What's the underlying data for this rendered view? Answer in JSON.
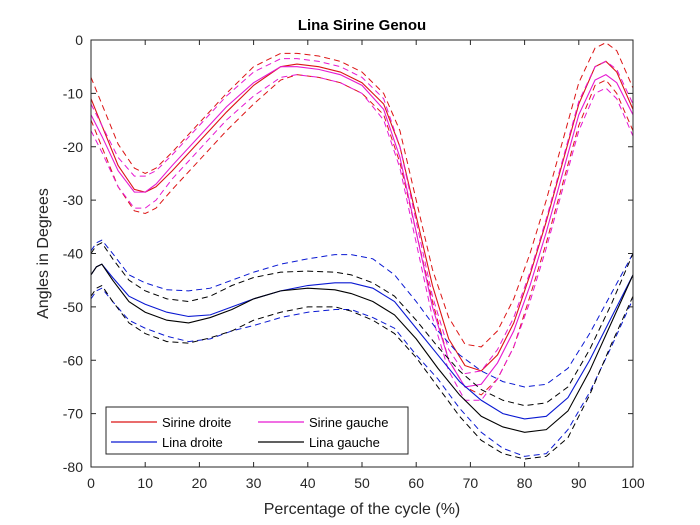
{
  "chart_data": {
    "type": "line",
    "title": "Lina Sirine Genou",
    "xlabel": "Percentage of the cycle (%)",
    "ylabel": "Angles in Degrees",
    "xlim": [
      0,
      100
    ],
    "ylim": [
      -80,
      0
    ],
    "xticks": [
      0,
      10,
      20,
      30,
      40,
      50,
      60,
      70,
      80,
      90,
      100
    ],
    "yticks": [
      0,
      -10,
      -20,
      -30,
      -40,
      -50,
      -60,
      -70,
      -80
    ],
    "legend_position": "bottom-left",
    "series": [
      {
        "name": "Sirine droite",
        "color": "#dc1414",
        "x": [
          0,
          2,
          5,
          8,
          10,
          12,
          15,
          20,
          25,
          30,
          35,
          38,
          42,
          46,
          50,
          54,
          57,
          60,
          63,
          66,
          69,
          72,
          75,
          78,
          81,
          84,
          87,
          90,
          93,
          95,
          97,
          100
        ],
        "mean": [
          -11,
          -16,
          -23.5,
          -28,
          -28.5,
          -27.5,
          -24.5,
          -19,
          -13.5,
          -8.5,
          -5,
          -4.5,
          -5,
          -6,
          -8,
          -12,
          -20,
          -33,
          -46,
          -56,
          -61,
          -62,
          -59,
          -53,
          -44,
          -34,
          -23,
          -12,
          -5,
          -4,
          -6,
          -13
        ],
        "upper": [
          -7,
          -12,
          -19.5,
          -24,
          -25,
          -24,
          -21,
          -15.5,
          -10,
          -5,
          -2.5,
          -2.5,
          -3,
          -4,
          -6,
          -10,
          -17,
          -30,
          -43,
          -52,
          -57,
          -57.5,
          -54.5,
          -48.5,
          -40,
          -30,
          -19,
          -8,
          -1.5,
          -0.5,
          -2,
          -9
        ],
        "lower": [
          -15,
          -20,
          -27.5,
          -32,
          -32.5,
          -31.5,
          -28,
          -22.5,
          -17,
          -12,
          -7.5,
          -6.5,
          -7,
          -8,
          -10,
          -14,
          -23,
          -36,
          -49,
          -60,
          -65,
          -66.5,
          -63.5,
          -57.5,
          -48,
          -38,
          -27,
          -16,
          -8.5,
          -7.5,
          -10,
          -17
        ]
      },
      {
        "name": "Sirine gauche",
        "color": "#e619d2",
        "x": [
          0,
          2,
          5,
          8,
          10,
          12,
          15,
          20,
          25,
          30,
          35,
          38,
          42,
          46,
          50,
          54,
          57,
          60,
          63,
          66,
          69,
          72,
          75,
          78,
          81,
          84,
          87,
          90,
          93,
          95,
          97,
          100
        ],
        "mean": [
          -14,
          -18,
          -24.5,
          -28.5,
          -28.5,
          -27,
          -23.5,
          -18,
          -12.5,
          -8,
          -5,
          -5,
          -5.5,
          -6.5,
          -8.5,
          -13,
          -22,
          -36,
          -50,
          -60,
          -65,
          -64.5,
          -60.5,
          -54.5,
          -46,
          -36,
          -25,
          -14,
          -7.5,
          -6.5,
          -8,
          -14
        ],
        "upper": [
          -12,
          -16,
          -22,
          -25.5,
          -25.5,
          -24.5,
          -21.5,
          -16,
          -10.5,
          -6,
          -3.5,
          -3.5,
          -4,
          -5,
          -7,
          -11,
          -20,
          -34,
          -48,
          -58,
          -62.5,
          -62,
          -58,
          -52,
          -43.5,
          -33.5,
          -22.5,
          -11.5,
          -5,
          -4,
          -5.5,
          -12
        ],
        "lower": [
          -17,
          -21,
          -27.5,
          -31.5,
          -31.5,
          -30,
          -26,
          -20.5,
          -15,
          -10.5,
          -7,
          -6.5,
          -7,
          -8,
          -10,
          -15,
          -24,
          -38,
          -52,
          -62,
          -67.5,
          -67.5,
          -63.5,
          -57.5,
          -49,
          -39,
          -28,
          -17,
          -10,
          -9,
          -11,
          -18
        ]
      },
      {
        "name": "Lina droite",
        "color": "#0a19d2",
        "x": [
          0,
          1,
          2,
          4,
          7,
          10,
          14,
          18,
          22,
          26,
          30,
          35,
          40,
          45,
          48,
          52,
          56,
          60,
          64,
          68,
          72,
          76,
          80,
          84,
          88,
          92,
          96,
          100
        ],
        "mean": [
          -44,
          -42.5,
          -42,
          -44.5,
          -48,
          -49.5,
          -51,
          -51.8,
          -51.5,
          -50,
          -48.5,
          -47,
          -46,
          -45.5,
          -45.5,
          -46.5,
          -49,
          -54,
          -59,
          -64,
          -67.5,
          -70,
          -71,
          -70.5,
          -67,
          -60,
          -52,
          -44
        ],
        "upper": [
          -39.5,
          -38,
          -37.5,
          -40,
          -44,
          -45.5,
          -46.8,
          -47,
          -46.5,
          -45,
          -43.5,
          -42,
          -41,
          -40.2,
          -40.2,
          -41,
          -44,
          -49,
          -54.5,
          -59,
          -62,
          -64,
          -65,
          -64.5,
          -61.5,
          -55,
          -47.5,
          -40
        ],
        "lower": [
          -48.5,
          -47,
          -46.5,
          -49,
          -52.5,
          -54,
          -55.5,
          -56.5,
          -56,
          -54.5,
          -53.5,
          -52,
          -51,
          -50.5,
          -50.5,
          -52,
          -54,
          -59,
          -63.5,
          -69,
          -73.5,
          -76.5,
          -78,
          -77.5,
          -73,
          -66,
          -57.5,
          -48.5
        ]
      },
      {
        "name": "Lina gauche",
        "color": "#000000",
        "x": [
          0,
          1,
          2,
          4,
          7,
          10,
          14,
          18,
          22,
          26,
          30,
          35,
          40,
          45,
          48,
          52,
          56,
          60,
          64,
          68,
          72,
          76,
          80,
          84,
          88,
          92,
          96,
          100
        ],
        "mean": [
          -44,
          -42.5,
          -42,
          -45,
          -49,
          -51,
          -52.5,
          -53,
          -52,
          -50.5,
          -48.5,
          -47,
          -46.5,
          -46.8,
          -47.5,
          -49,
          -51.5,
          -56,
          -61.5,
          -66.5,
          -70.5,
          -72.5,
          -73.5,
          -73,
          -69.5,
          -62,
          -53,
          -44
        ],
        "upper": [
          -40,
          -38.5,
          -38,
          -41,
          -45,
          -47,
          -48.5,
          -49,
          -48,
          -46,
          -44.5,
          -43.5,
          -43.3,
          -43.5,
          -44,
          -45.5,
          -48,
          -52.5,
          -57.5,
          -62,
          -65.5,
          -67.5,
          -68.5,
          -68,
          -65,
          -58,
          -49.5,
          -40
        ],
        "lower": [
          -48,
          -46.5,
          -46,
          -49,
          -53,
          -55,
          -56.5,
          -56.8,
          -55.8,
          -54.5,
          -52.5,
          -51,
          -50,
          -50,
          -50.8,
          -52.5,
          -55,
          -59.5,
          -65,
          -70.5,
          -75,
          -77.5,
          -78.5,
          -78,
          -74.5,
          -66.5,
          -57,
          -48
        ]
      }
    ]
  }
}
